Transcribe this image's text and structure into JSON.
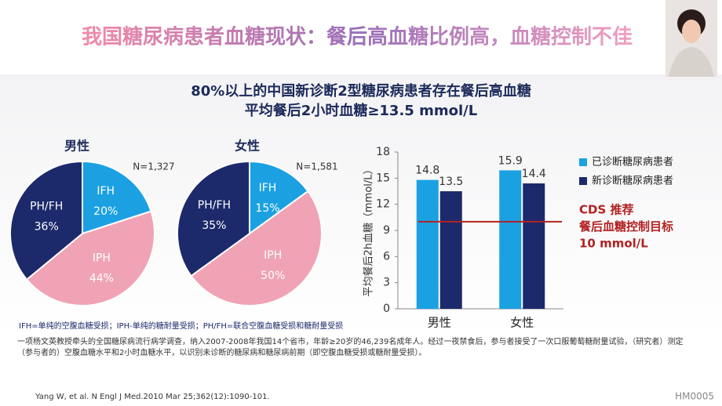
{
  "slide": {
    "title": "我国糖尿病患者血糖现状：餐后高血糖比例高，血糖控制不佳",
    "headline": [
      "80%以上的中国新诊断2型糖尿病患者存在餐后高血糖",
      "平均餐后2小时血糖≥13.5 mmol/L"
    ],
    "legend_note": "IFH=单纯的空腹血糖受损；IPH-单纯的糖耐量受损；PH/FH=联合空腹血糖受损和糖耐量受损",
    "description": [
      "一项杨文英教授牵头的全国糖尿病流行病学调查，纳入2007-2008年我国14个省市，年龄≥20岁的46,239名成年人。经过一夜禁食后，参与者接受了一次口服葡萄糖耐量试验，（研究者）测定",
      "（参与者的）空腹血糖水平和2小时血糖水平，以识别未诊断的糖尿病和糖尿病前期（即空腹血糖受损或糖耐量受损）。"
    ],
    "reference": "Yang W, et al.  N Engl J Med.2010 Mar 25;362(12):1090-101.",
    "code": "HM0005"
  },
  "chart_data": [
    {
      "type": "pie",
      "title": "男性",
      "note": "N=1,327",
      "categories": [
        "IFH",
        "IPH",
        "PH/FH"
      ],
      "values": [
        20,
        44,
        36
      ],
      "value_labels": [
        "20%",
        "44%",
        "36%"
      ],
      "colors": [
        "#1ba1e2",
        "#f0a3b4",
        "#1c2a6b"
      ]
    },
    {
      "type": "pie",
      "title": "女性",
      "note": "N=1,581",
      "categories": [
        "IFH",
        "IPH",
        "PH/FH"
      ],
      "values": [
        15,
        50,
        35
      ],
      "value_labels": [
        "15%",
        "50%",
        "35%"
      ],
      "colors": [
        "#1ba1e2",
        "#f0a3b4",
        "#1c2a6b"
      ]
    },
    {
      "type": "bar",
      "ylabel": "平均餐后2h血糖（mmol/L）",
      "categories": [
        "男性",
        "女性"
      ],
      "series": [
        {
          "name": "已诊断糖尿病患者",
          "color": "#1ba1e2",
          "values": [
            14.8,
            15.9
          ]
        },
        {
          "name": "新诊断糖尿病患者",
          "color": "#1c2a6b",
          "values": [
            13.5,
            14.4
          ]
        }
      ],
      "ylim": [
        0,
        18
      ],
      "yticks": [
        0,
        3,
        6,
        9,
        12,
        15,
        18
      ],
      "grid": false,
      "target": {
        "value": 10,
        "color": "#b22222",
        "label": [
          "CDS 推荐",
          "餐后血糖控制目标",
          "10 mmol/L"
        ]
      }
    }
  ]
}
